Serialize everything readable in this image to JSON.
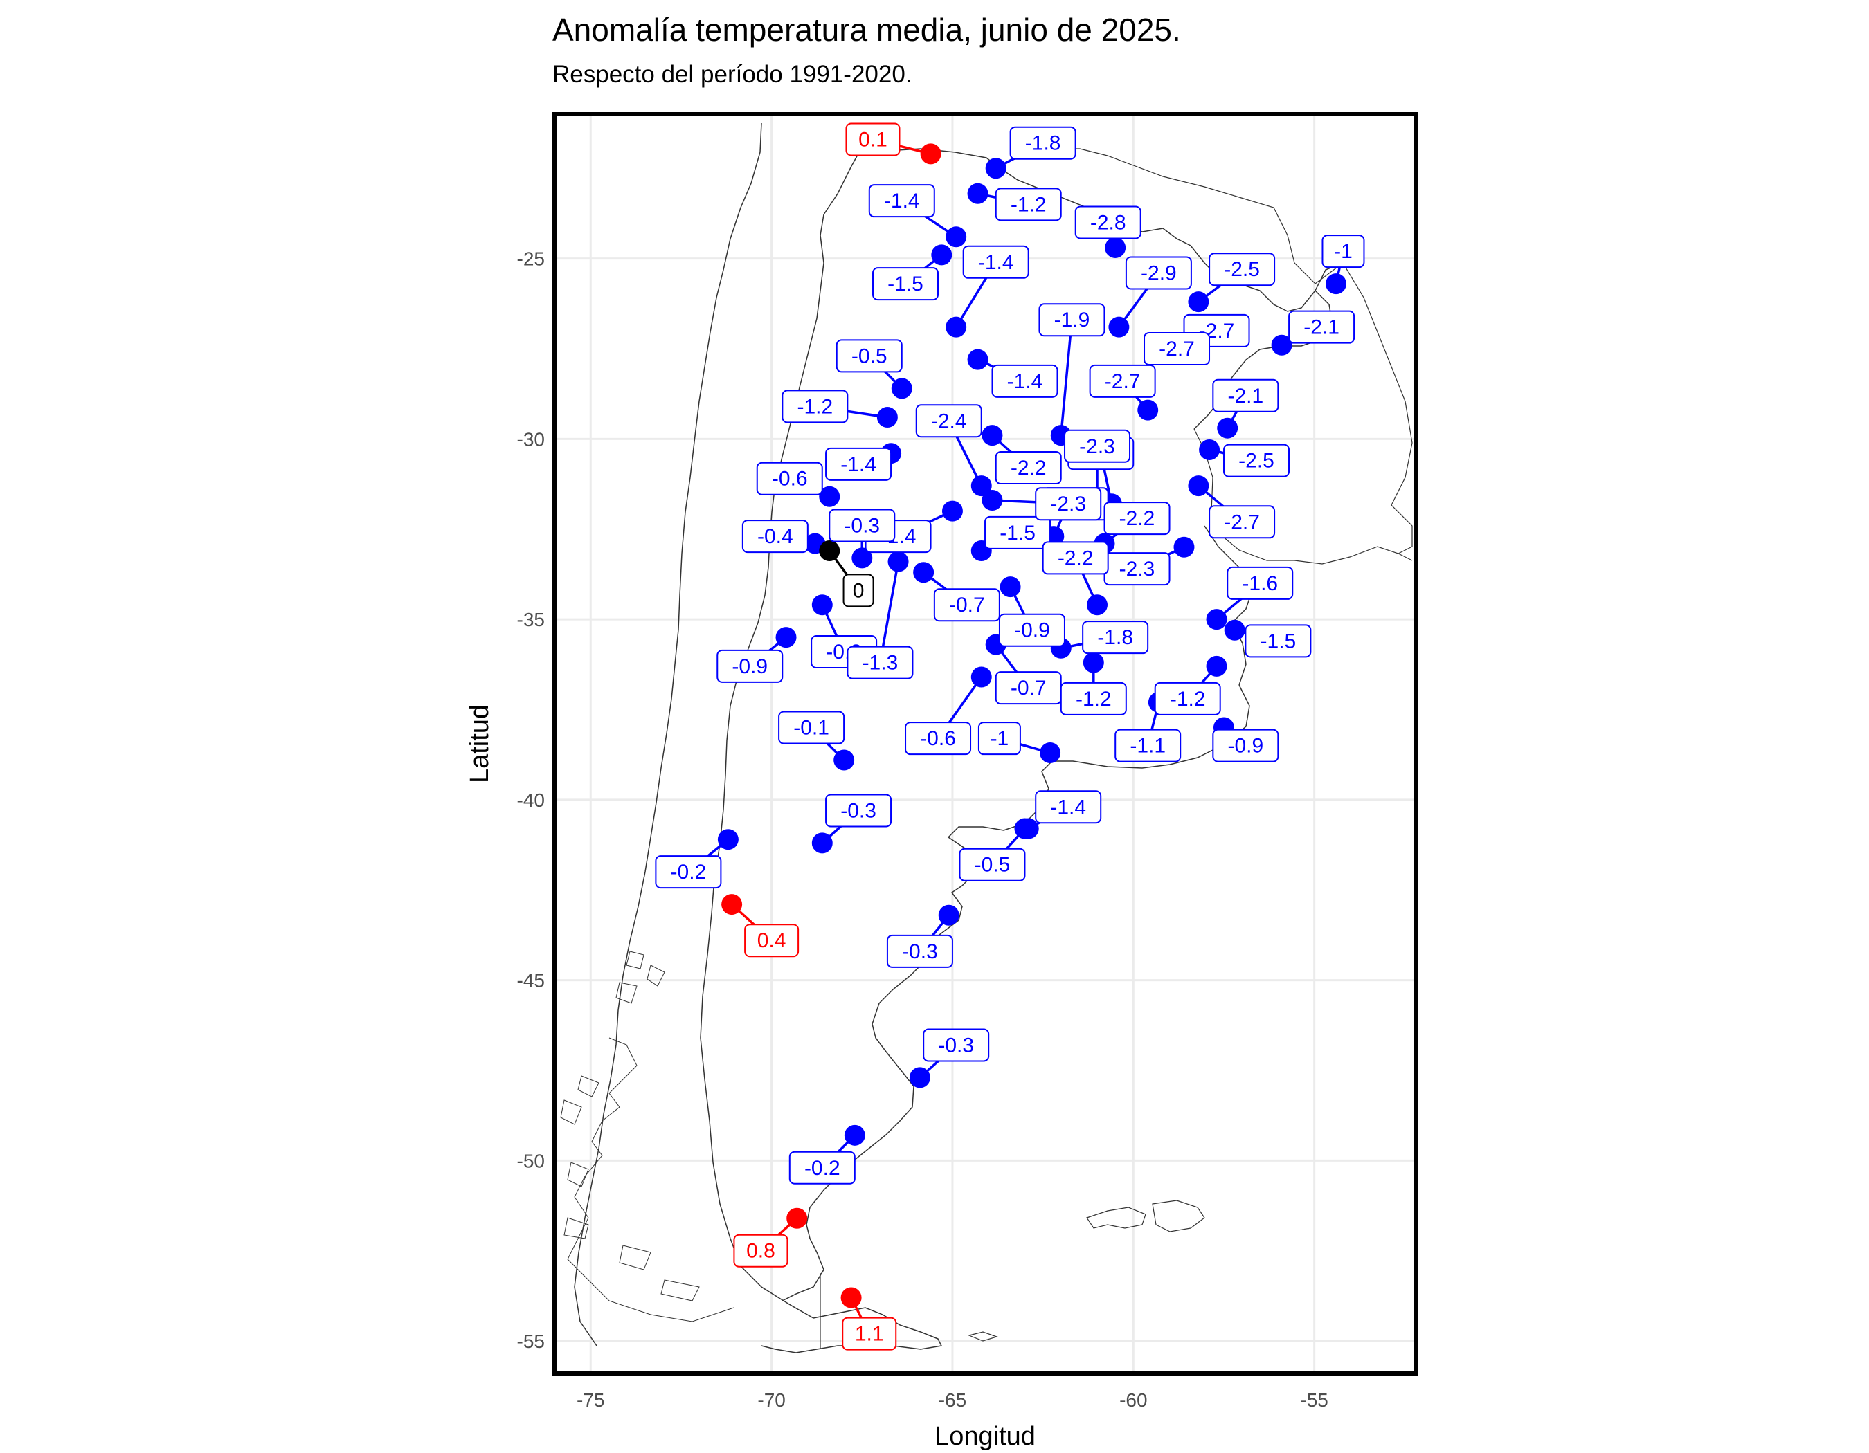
{
  "title": "Anomalía temperatura media, junio de 2025.",
  "subtitle": "Respecto del período 1991-2020.",
  "chart_data": {
    "type": "scatter",
    "xlabel": "Longitud",
    "ylabel": "Latitud",
    "xlim": [
      -76,
      -52.2
    ],
    "ylim": [
      -55.9,
      -21
    ],
    "xticks": [
      -75,
      -70,
      -65,
      -60,
      -55
    ],
    "yticks": [
      -25,
      -30,
      -35,
      -40,
      -45,
      -50,
      -55
    ],
    "xtick_labels": [
      "-75",
      "-70",
      "-65",
      "-60",
      "-55"
    ],
    "ytick_labels": [
      "-25",
      "-30",
      "-35",
      "-40",
      "-45",
      "-50",
      "-55"
    ],
    "grid": true,
    "colors": {
      "negative": "#0000ff",
      "positive": "#ff0000",
      "zero": "#000000"
    },
    "points": [
      {
        "lon": -65.6,
        "lat": -22.1,
        "value": "0.1",
        "lx": -67.2,
        "ly": -21.7
      },
      {
        "lon": -63.8,
        "lat": -22.5,
        "value": "-1.8",
        "lx": -62.5,
        "ly": -21.8
      },
      {
        "lon": -64.3,
        "lat": -23.2,
        "value": "-1.2",
        "lx": -62.9,
        "ly": -23.5
      },
      {
        "lon": -64.9,
        "lat": -24.4,
        "value": "-1.4",
        "lx": -66.4,
        "ly": -23.4
      },
      {
        "lon": -60.5,
        "lat": -24.7,
        "value": "-2.8",
        "lx": -60.7,
        "ly": -24.0
      },
      {
        "lon": -65.3,
        "lat": -24.9,
        "value": "-1.5",
        "lx": -66.3,
        "ly": -25.7
      },
      {
        "lon": -54.4,
        "lat": -25.7,
        "value": "-1",
        "lx": -54.2,
        "ly": -24.8
      },
      {
        "lon": -64.9,
        "lat": -26.9,
        "value": "-1.4",
        "lx": -63.8,
        "ly": -25.1
      },
      {
        "lon": -60.4,
        "lat": -26.9,
        "value": "-2.9",
        "lx": -59.3,
        "ly": -25.4
      },
      {
        "lon": -58.2,
        "lat": -26.2,
        "value": "-2.5",
        "lx": -57.0,
        "ly": -25.3
      },
      {
        "lon": -59.1,
        "lat": -27.5,
        "value": "-2.7",
        "lx": -57.7,
        "ly": -27.0
      },
      {
        "lon": -58.8,
        "lat": -27.5,
        "value": "-2.7",
        "lx": -58.8,
        "ly": -27.5
      },
      {
        "lon": -55.9,
        "lat": -27.4,
        "value": "-2.1",
        "lx": -54.8,
        "ly": -26.9
      },
      {
        "lon": -62.0,
        "lat": -29.9,
        "value": "-1.9",
        "lx": -61.7,
        "ly": -26.7
      },
      {
        "lon": -64.3,
        "lat": -27.8,
        "value": "-1.4",
        "lx": -63.0,
        "ly": -28.4
      },
      {
        "lon": -66.4,
        "lat": -28.6,
        "value": "-0.5",
        "lx": -67.3,
        "ly": -27.7
      },
      {
        "lon": -59.6,
        "lat": -29.2,
        "value": "-2.7",
        "lx": -60.3,
        "ly": -28.4
      },
      {
        "lon": -57.4,
        "lat": -29.7,
        "value": "-2.1",
        "lx": -56.9,
        "ly": -28.8
      },
      {
        "lon": -66.8,
        "lat": -29.4,
        "value": "-1.2",
        "lx": -68.8,
        "ly": -29.1
      },
      {
        "lon": -63.9,
        "lat": -29.9,
        "value": "-2.2",
        "lx": -62.9,
        "ly": -30.8
      },
      {
        "lon": -64.2,
        "lat": -31.3,
        "value": "-2.4",
        "lx": -65.1,
        "ly": -29.5
      },
      {
        "lon": -60.6,
        "lat": -31.8,
        "value": "-2.2",
        "lx": -60.9,
        "ly": -30.4
      },
      {
        "lon": -61.0,
        "lat": -31.8,
        "value": "-2.3",
        "lx": -61.0,
        "ly": -30.2
      },
      {
        "lon": -57.9,
        "lat": -30.3,
        "value": "-2.5",
        "lx": -56.6,
        "ly": -30.6
      },
      {
        "lon": -66.7,
        "lat": -30.4,
        "value": "-1.4",
        "lx": -67.6,
        "ly": -30.7
      },
      {
        "lon": -63.9,
        "lat": -31.7,
        "value": "-2.3",
        "lx": -61.6,
        "ly": -31.8
      },
      {
        "lon": -58.2,
        "lat": -31.3,
        "value": "-2.7",
        "lx": -57.0,
        "ly": -32.3
      },
      {
        "lon": -68.4,
        "lat": -31.6,
        "value": "-0.6",
        "lx": -69.5,
        "ly": -31.1
      },
      {
        "lon": -65.0,
        "lat": -32.0,
        "value": "-1.4",
        "lx": -66.5,
        "ly": -32.7
      },
      {
        "lon": -64.2,
        "lat": -33.1,
        "value": "-1.5",
        "lx": -63.2,
        "ly": -32.6
      },
      {
        "lon": -62.2,
        "lat": -32.7,
        "value": "-2.3",
        "lx": -61.8,
        "ly": -31.8
      },
      {
        "lon": -60.8,
        "lat": -32.9,
        "value": "-2.2",
        "lx": -59.9,
        "ly": -32.2
      },
      {
        "lon": -58.6,
        "lat": -33.0,
        "value": "-2.3",
        "lx": -59.9,
        "ly": -33.6
      },
      {
        "lon": -68.8,
        "lat": -32.9,
        "value": "-0.4",
        "lx": -69.9,
        "ly": -32.7
      },
      {
        "lon": -67.5,
        "lat": -33.3,
        "value": "-0.3",
        "lx": -67.5,
        "ly": -32.4
      },
      {
        "lon": -68.4,
        "lat": -33.1,
        "value": "0",
        "lx": -67.6,
        "ly": -34.2
      },
      {
        "lon": -65.8,
        "lat": -33.7,
        "value": "-0.7",
        "lx": -64.6,
        "ly": -34.6
      },
      {
        "lon": -63.4,
        "lat": -34.1,
        "value": "-0.9",
        "lx": -62.8,
        "ly": -35.3
      },
      {
        "lon": -61.0,
        "lat": -34.6,
        "value": "-2.2",
        "lx": -61.6,
        "ly": -33.3
      },
      {
        "lon": -57.7,
        "lat": -35.0,
        "value": "-1.6",
        "lx": -56.5,
        "ly": -34.0
      },
      {
        "lon": -57.2,
        "lat": -35.3,
        "value": "-1.5",
        "lx": -56.0,
        "ly": -35.6
      },
      {
        "lon": -68.6,
        "lat": -34.6,
        "value": "-0.2",
        "lx": -68.0,
        "ly": -35.9
      },
      {
        "lon": -69.6,
        "lat": -35.5,
        "value": "-0.9",
        "lx": -70.6,
        "ly": -36.3
      },
      {
        "lon": -66.5,
        "lat": -33.4,
        "value": "-1.3",
        "lx": -67.0,
        "ly": -36.2
      },
      {
        "lon": -63.8,
        "lat": -35.7,
        "value": "-0.7",
        "lx": -62.9,
        "ly": -36.9
      },
      {
        "lon": -62.0,
        "lat": -35.8,
        "value": "-1.8",
        "lx": -60.5,
        "ly": -35.5
      },
      {
        "lon": -61.1,
        "lat": -36.2,
        "value": "-1.2",
        "lx": -61.1,
        "ly": -37.2
      },
      {
        "lon": -57.7,
        "lat": -36.3,
        "value": "-1.2",
        "lx": -58.5,
        "ly": -37.2
      },
      {
        "lon": -59.3,
        "lat": -37.3,
        "value": "-1.1",
        "lx": -59.6,
        "ly": -38.5
      },
      {
        "lon": -57.5,
        "lat": -38.0,
        "value": "-0.9",
        "lx": -56.9,
        "ly": -38.5
      },
      {
        "lon": -64.2,
        "lat": -36.6,
        "value": "-0.6",
        "lx": -65.4,
        "ly": -38.3
      },
      {
        "lon": -62.3,
        "lat": -38.7,
        "value": "-1",
        "lx": -63.7,
        "ly": -38.3
      },
      {
        "lon": -68.0,
        "lat": -38.9,
        "value": "-0.1",
        "lx": -68.9,
        "ly": -38.0
      },
      {
        "lon": -62.9,
        "lat": -40.8,
        "value": "-1.4",
        "lx": -61.8,
        "ly": -40.2
      },
      {
        "lon": -68.6,
        "lat": -41.2,
        "value": "-0.3",
        "lx": -67.6,
        "ly": -40.3
      },
      {
        "lon": -71.2,
        "lat": -41.1,
        "value": "-0.2",
        "lx": -72.3,
        "ly": -42.0
      },
      {
        "lon": -63.0,
        "lat": -40.8,
        "value": "-0.5",
        "lx": -63.9,
        "ly": -41.8
      },
      {
        "lon": -71.1,
        "lat": -42.9,
        "value": "0.4",
        "lx": -70.0,
        "ly": -43.9
      },
      {
        "lon": -65.1,
        "lat": -43.2,
        "value": "-0.3",
        "lx": -65.9,
        "ly": -44.2
      },
      {
        "lon": -65.9,
        "lat": -47.7,
        "value": "-0.3",
        "lx": -64.9,
        "ly": -46.8
      },
      {
        "lon": -67.7,
        "lat": -49.3,
        "value": "-0.2",
        "lx": -68.6,
        "ly": -50.2
      },
      {
        "lon": -69.3,
        "lat": -51.6,
        "value": "0.8",
        "lx": -70.3,
        "ly": -52.5
      },
      {
        "lon": -67.8,
        "lat": -53.8,
        "value": "1.1",
        "lx": -67.3,
        "ly": -54.8
      }
    ]
  }
}
